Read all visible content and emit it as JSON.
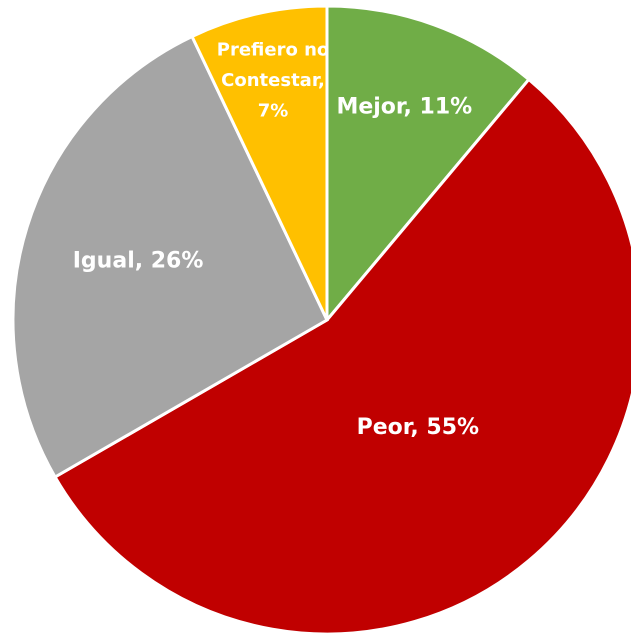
{
  "chart_data": {
    "type": "pie",
    "values": [
      11,
      55,
      26,
      7
    ],
    "value_labels": [
      [
        "Mejor, 11%"
      ],
      [
        "Peor, 55%"
      ],
      [
        "Igual, 26%"
      ],
      [
        "Prefiero no",
        "Contestar,",
        "7%"
      ]
    ],
    "colors": [
      "#70ad47",
      "#c00000",
      "#a5a5a5",
      "#ffc000"
    ]
  }
}
